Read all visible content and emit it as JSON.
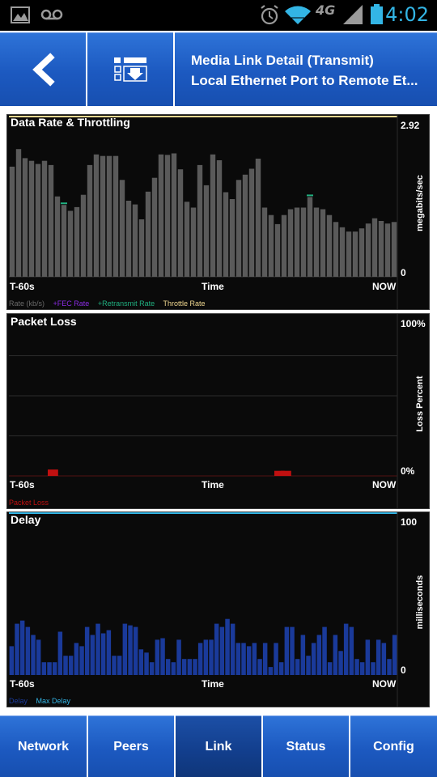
{
  "status_bar": {
    "time": "4:02",
    "network": "4G",
    "icons": [
      "image-icon",
      "voicemail-icon",
      "alarm-icon",
      "wifi-icon",
      "signal-icon",
      "battery-icon"
    ]
  },
  "header": {
    "title_line1": "Media Link Detail (Transmit)",
    "title_line2": "Local Ethernet Port to Remote Et...",
    "back_icon": "back-arrow-icon",
    "list_icon": "list-download-icon"
  },
  "colors": {
    "header_blue": "#1c59c0",
    "bar_gray": "#5a5a5a",
    "delay_blue": "#1a3a9a",
    "max_delay": "#33b5e5",
    "packet_loss": "#c01010",
    "fec": "#8a2be2",
    "retransmit": "#20b080",
    "throttle": "#f0d890"
  },
  "panels": {
    "rate": {
      "title": "Data Rate & Throttling",
      "y_max_label": "2.92",
      "y_min_label": "0",
      "y_axis_label": "megabits/sec",
      "x_left": "T-60s",
      "x_center": "Time",
      "x_right": "NOW",
      "legend": {
        "rate": "Rate (kb/s)",
        "fec": "+FEC Rate",
        "retransmit": "+Retransmit Rate",
        "throttle": "Throttle Rate"
      }
    },
    "loss": {
      "title": "Packet Loss",
      "y_max_label": "100%",
      "y_min_label": "0%",
      "y_axis_label": "Loss Percent",
      "x_left": "T-60s",
      "x_center": "Time",
      "x_right": "NOW",
      "legend": {
        "loss": "Packet Loss"
      }
    },
    "delay": {
      "title": "Delay",
      "y_max_label": "100",
      "y_min_label": "0",
      "y_axis_label": "milliseconds",
      "x_left": "T-60s",
      "x_center": "Time",
      "x_right": "NOW",
      "legend": {
        "delay": "Delay",
        "max_delay": "Max Delay"
      }
    }
  },
  "tabs": [
    {
      "label": "Network",
      "active": false
    },
    {
      "label": "Peers",
      "active": false
    },
    {
      "label": "Link",
      "active": true
    },
    {
      "label": "Status",
      "active": false
    },
    {
      "label": "Config",
      "active": false
    }
  ],
  "chart_data": [
    {
      "type": "bar",
      "title": "Data Rate & Throttling",
      "ylabel": "megabits/sec",
      "ylim": [
        0,
        2.92
      ],
      "x_range": [
        "T-60s",
        "NOW"
      ],
      "series": [
        {
          "name": "Rate (kb/s)",
          "values": [
            2.07,
            2.4,
            2.23,
            2.18,
            2.12,
            2.18,
            2.1,
            1.51,
            1.35,
            1.24,
            1.31,
            1.54,
            2.1,
            2.3,
            2.27,
            2.27,
            2.27,
            1.82,
            1.43,
            1.36,
            1.08,
            1.6,
            1.86,
            2.3,
            2.29,
            2.32,
            2.02,
            1.41,
            1.3,
            2.1,
            1.72,
            2.3,
            2.19,
            1.59,
            1.46,
            1.82,
            1.92,
            2.03,
            2.22,
            1.3,
            1.16,
            0.99,
            1.16,
            1.27,
            1.3,
            1.3,
            1.5,
            1.3,
            1.27,
            1.16,
            1.03,
            0.93,
            0.85,
            0.85,
            0.91,
            1.0,
            1.1,
            1.05,
            1.0,
            1.03
          ]
        },
        {
          "name": "Throttle Rate",
          "values": [
            2.92
          ]
        }
      ]
    },
    {
      "type": "bar",
      "title": "Packet Loss",
      "ylabel": "Loss Percent",
      "ylim": [
        0,
        100
      ],
      "x_range": [
        "T-60s",
        "NOW"
      ],
      "series": [
        {
          "name": "Packet Loss",
          "values": [
            0,
            0,
            0,
            0,
            0,
            0,
            1,
            0,
            0,
            0,
            0,
            0,
            0,
            0,
            0,
            0,
            0,
            0,
            0,
            0,
            0,
            0,
            0,
            0,
            0,
            0,
            0,
            0,
            0,
            0,
            0,
            0,
            0,
            0,
            0,
            0,
            0,
            0,
            0,
            0,
            0,
            0.8,
            0.8,
            0,
            0,
            0,
            0,
            0,
            0,
            0,
            0,
            0,
            0,
            0,
            0,
            0,
            0,
            0,
            0,
            0
          ]
        }
      ]
    },
    {
      "type": "bar",
      "title": "Delay",
      "ylabel": "milliseconds",
      "ylim": [
        0,
        100
      ],
      "x_range": [
        "T-60s",
        "NOW"
      ],
      "series": [
        {
          "name": "Delay",
          "values": [
            18,
            32,
            34,
            30,
            25,
            22,
            8,
            8,
            8,
            27,
            12,
            12,
            20,
            18,
            30,
            25,
            32,
            26,
            28,
            12,
            12,
            32,
            31,
            30,
            16,
            14,
            8,
            22,
            23,
            10,
            8,
            22,
            10,
            10,
            10,
            20,
            22,
            22,
            32,
            30,
            35,
            32,
            20,
            20,
            18,
            20,
            10,
            20,
            5,
            20,
            8,
            30,
            30,
            10,
            25,
            12,
            20,
            25,
            30,
            8,
            25,
            15,
            32,
            30,
            10,
            8,
            22,
            8,
            22,
            20,
            10,
            25
          ]
        },
        {
          "name": "Max Delay",
          "values": [
            100
          ]
        }
      ]
    }
  ]
}
